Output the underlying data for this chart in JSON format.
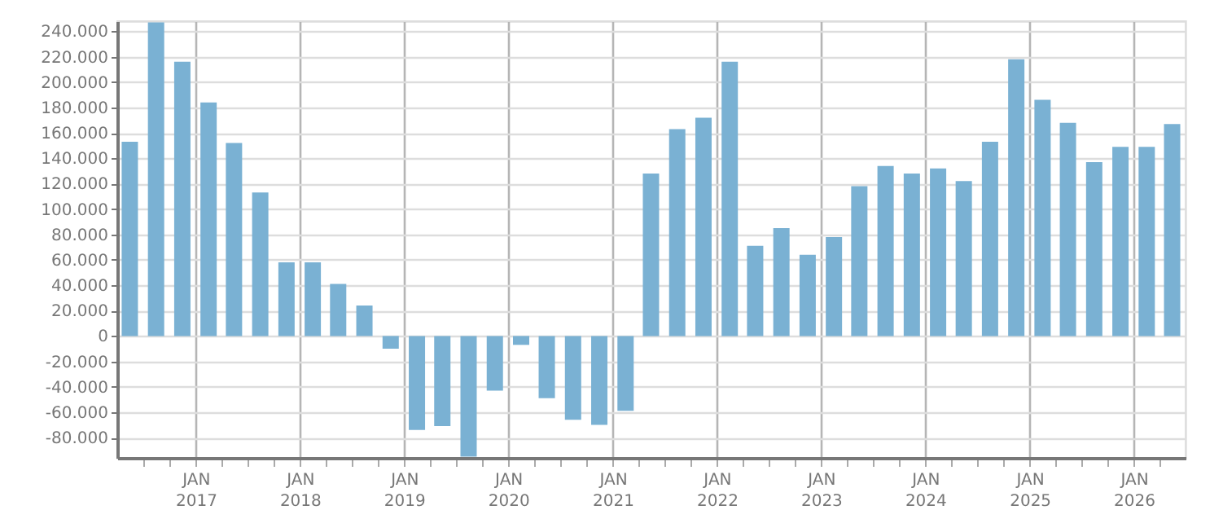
{
  "chart_data": {
    "type": "bar",
    "color": "#7ab1d3",
    "x": [
      "2016-05-15",
      "2016-08-15",
      "2016-11-15",
      "2017-02-15",
      "2017-05-15",
      "2017-08-15",
      "2017-11-15",
      "2018-02-15",
      "2018-05-15",
      "2018-08-15",
      "2018-11-15",
      "2019-02-15",
      "2019-05-15",
      "2019-08-15",
      "2019-11-15",
      "2020-02-15",
      "2020-05-15",
      "2020-08-15",
      "2020-11-15",
      "2021-02-15",
      "2021-05-15",
      "2021-08-15",
      "2021-11-15",
      "2022-02-15",
      "2022-05-15",
      "2022-08-15",
      "2022-11-15",
      "2023-02-15",
      "2023-05-15",
      "2023-08-15",
      "2023-11-15",
      "2024-02-15",
      "2024-05-15",
      "2024-08-15",
      "2024-11-15",
      "2025-02-15",
      "2025-05-15",
      "2025-08-15",
      "2025-11-15",
      "2026-02-15",
      "2026-05-15"
    ],
    "values": [
      153000,
      247000,
      216000,
      184000,
      152000,
      113000,
      58000,
      58000,
      41000,
      24000,
      -10000,
      -74000,
      -71000,
      -95000,
      -43000,
      -7000,
      -49000,
      -66000,
      -70000,
      -59000,
      128000,
      163000,
      172000,
      216000,
      71000,
      85000,
      64000,
      78000,
      118000,
      134000,
      128000,
      132000,
      122000,
      153000,
      218000,
      186000,
      168000,
      137000,
      149000,
      149000,
      167000
    ],
    "xlim": [
      "2016-04",
      "2026-07"
    ],
    "xticks": [
      {
        "value": "2016-07",
        "label": null
      },
      {
        "value": "2016-10",
        "label": null
      },
      {
        "value": "2017-01",
        "label": "JAN\n2017"
      },
      {
        "value": "2017-04",
        "label": null
      },
      {
        "value": "2017-07",
        "label": null
      },
      {
        "value": "2017-10",
        "label": null
      },
      {
        "value": "2018-01",
        "label": "JAN\n2018"
      },
      {
        "value": "2018-04",
        "label": null
      },
      {
        "value": "2018-07",
        "label": null
      },
      {
        "value": "2018-10",
        "label": null
      },
      {
        "value": "2019-01",
        "label": "JAN\n2019"
      },
      {
        "value": "2019-04",
        "label": null
      },
      {
        "value": "2019-07",
        "label": null
      },
      {
        "value": "2019-10",
        "label": null
      },
      {
        "value": "2020-01",
        "label": "JAN\n2020"
      },
      {
        "value": "2020-04",
        "label": null
      },
      {
        "value": "2020-07",
        "label": null
      },
      {
        "value": "2020-10",
        "label": null
      },
      {
        "value": "2021-01",
        "label": "JAN\n2021"
      },
      {
        "value": "2021-04",
        "label": null
      },
      {
        "value": "2021-07",
        "label": null
      },
      {
        "value": "2021-10",
        "label": null
      },
      {
        "value": "2022-01",
        "label": "JAN\n2022"
      },
      {
        "value": "2022-04",
        "label": null
      },
      {
        "value": "2022-07",
        "label": null
      },
      {
        "value": "2022-10",
        "label": null
      },
      {
        "value": "2023-01",
        "label": "JAN\n2023"
      },
      {
        "value": "2023-04",
        "label": null
      },
      {
        "value": "2023-07",
        "label": null
      },
      {
        "value": "2023-10",
        "label": null
      },
      {
        "value": "2024-01",
        "label": "JAN\n2024"
      },
      {
        "value": "2024-04",
        "label": null
      },
      {
        "value": "2024-07",
        "label": null
      },
      {
        "value": "2024-10",
        "label": null
      },
      {
        "value": "2025-01",
        "label": "JAN\n2025"
      },
      {
        "value": "2025-04",
        "label": null
      },
      {
        "value": "2025-07",
        "label": null
      },
      {
        "value": "2025-10",
        "label": null
      },
      {
        "value": "2026-01",
        "label": "JAN\n2026"
      },
      {
        "value": "2026-04",
        "label": null
      }
    ],
    "ylim": [
      -96000,
      248000
    ],
    "yticks": [
      {
        "value": -80000,
        "label": "-80.000"
      },
      {
        "value": -60000,
        "label": "-60.000"
      },
      {
        "value": -40000,
        "label": "-40.000"
      },
      {
        "value": -20000,
        "label": "-20.000"
      },
      0,
      {
        "value": 20000,
        "label": "20.000"
      },
      {
        "value": 40000,
        "label": "40.000"
      },
      {
        "value": 60000,
        "label": "60.000"
      },
      {
        "value": 80000,
        "label": "80.000"
      },
      {
        "value": 100000,
        "label": "100.000"
      },
      {
        "value": 120000,
        "label": "120.000"
      },
      {
        "value": 140000,
        "label": "140.000"
      },
      {
        "value": 160000,
        "label": "160.000"
      },
      {
        "value": 180000,
        "label": "180.000"
      },
      {
        "value": 200000,
        "label": "200.000"
      },
      {
        "value": 220000,
        "label": "220.000"
      },
      {
        "value": 240000,
        "label": "240.000"
      }
    ],
    "grid": true
  }
}
